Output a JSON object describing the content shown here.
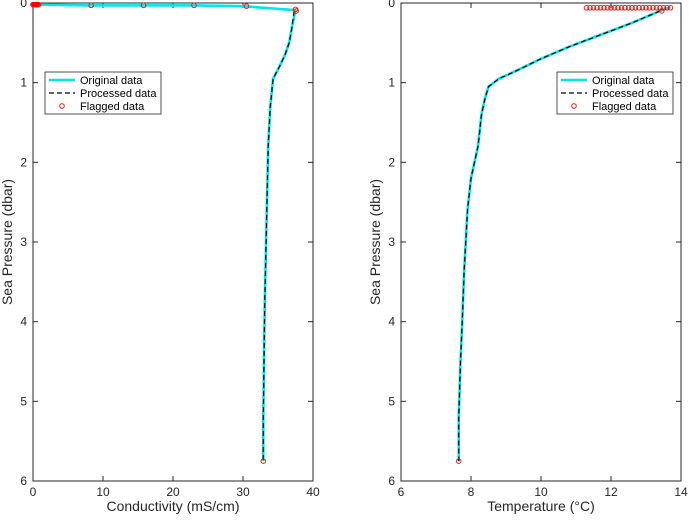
{
  "colors": {
    "original": "#00e5e5",
    "processed": "#000000",
    "flagged": "#ff0000",
    "axis": "#262626"
  },
  "chart_data": [
    {
      "type": "line",
      "xlabel": "Conductivity (mS/cm)",
      "ylabel": "Sea Pressure (dbar)",
      "xlim": [
        0,
        40
      ],
      "ylim": [
        0,
        6
      ],
      "y_reversed": true,
      "grid": false,
      "legend_placement": "upper-left",
      "x_ticks": [
        0,
        10,
        20,
        30,
        40
      ],
      "y_ticks": [
        0,
        1,
        2,
        3,
        4,
        5,
        6
      ],
      "series": [
        {
          "name": "Original data",
          "style": "solid-cyan",
          "x": [
            0,
            0.5,
            8,
            16,
            23,
            30,
            37.5,
            37,
            36.6,
            36,
            35.2,
            34.3,
            33.9,
            33.6,
            33.5,
            33.3,
            33.1,
            33.0,
            32.9,
            32.9
          ],
          "y": [
            0.02,
            0.02,
            0.03,
            0.03,
            0.03,
            0.04,
            0.09,
            0.3,
            0.5,
            0.65,
            0.8,
            0.95,
            1.3,
            1.8,
            2.2,
            3.0,
            3.8,
            4.5,
            5.2,
            5.75
          ]
        },
        {
          "name": "Processed data",
          "style": "dashed-black",
          "x": [
            37.3,
            37,
            36.6,
            36,
            35.2,
            34.3,
            33.9,
            33.6,
            33.5,
            33.3,
            33.1,
            33.0,
            32.9,
            32.9
          ],
          "y": [
            0.1,
            0.3,
            0.5,
            0.65,
            0.8,
            0.95,
            1.3,
            1.8,
            2.2,
            3.0,
            3.8,
            4.5,
            5.2,
            5.75
          ]
        },
        {
          "name": "Flagged data",
          "style": "red-circle-markers",
          "x": [
            0,
            0.1,
            0.2,
            0.3,
            0.4,
            0.5,
            0.6,
            0.8,
            8.3,
            15.8,
            23.0,
            30.5,
            37.5,
            37.6,
            32.9
          ],
          "y": [
            0.02,
            0.02,
            0.02,
            0.02,
            0.02,
            0.02,
            0.02,
            0.02,
            0.03,
            0.03,
            0.03,
            0.04,
            0.08,
            0.1,
            5.75
          ]
        }
      ]
    },
    {
      "type": "line",
      "xlabel": "Temperature (°C)",
      "ylabel": "Sea Pressure (dbar)",
      "xlim": [
        6,
        14
      ],
      "ylim": [
        0,
        6
      ],
      "y_reversed": true,
      "grid": false,
      "legend_placement": "upper-right",
      "x_ticks": [
        6,
        8,
        10,
        12,
        14
      ],
      "y_ticks": [
        0,
        1,
        2,
        3,
        4,
        5,
        6
      ],
      "series": [
        {
          "name": "Original data",
          "style": "solid-cyan",
          "x": [
            13.7,
            13.4,
            12.6,
            11.7,
            10.8,
            10.0,
            9.3,
            8.8,
            8.5,
            8.4,
            8.3,
            8.2,
            8.0,
            7.9,
            7.85,
            7.8,
            7.75,
            7.7,
            7.65,
            7.65
          ],
          "y": [
            0.05,
            0.1,
            0.25,
            0.4,
            0.55,
            0.7,
            0.85,
            0.95,
            1.05,
            1.2,
            1.4,
            1.8,
            2.2,
            2.6,
            3.0,
            3.4,
            4.0,
            4.5,
            5.2,
            5.75
          ]
        },
        {
          "name": "Processed data",
          "style": "dashed-black",
          "x": [
            13.4,
            12.6,
            11.7,
            10.8,
            10.0,
            9.3,
            8.8,
            8.5,
            8.4,
            8.3,
            8.2,
            8.0,
            7.9,
            7.85,
            7.8,
            7.75,
            7.7,
            7.65,
            7.65
          ],
          "y": [
            0.1,
            0.25,
            0.4,
            0.55,
            0.7,
            0.85,
            0.95,
            1.05,
            1.2,
            1.4,
            1.8,
            2.2,
            2.6,
            3.0,
            3.4,
            4.0,
            4.5,
            5.2,
            5.75
          ]
        },
        {
          "name": "Flagged data",
          "style": "red-circle-markers",
          "x": [
            11.3,
            11.4,
            11.5,
            11.6,
            11.7,
            11.8,
            11.9,
            12.0,
            12.1,
            12.2,
            12.3,
            12.4,
            12.5,
            12.6,
            12.7,
            12.8,
            12.9,
            13.0,
            13.1,
            13.2,
            13.3,
            13.4,
            13.5,
            13.6,
            13.7,
            13.45,
            7.65
          ],
          "y": [
            0.06,
            0.06,
            0.06,
            0.06,
            0.06,
            0.06,
            0.06,
            0.06,
            0.06,
            0.06,
            0.06,
            0.06,
            0.06,
            0.06,
            0.06,
            0.06,
            0.06,
            0.06,
            0.06,
            0.06,
            0.06,
            0.06,
            0.06,
            0.06,
            0.06,
            0.1,
            5.75
          ]
        }
      ]
    }
  ]
}
